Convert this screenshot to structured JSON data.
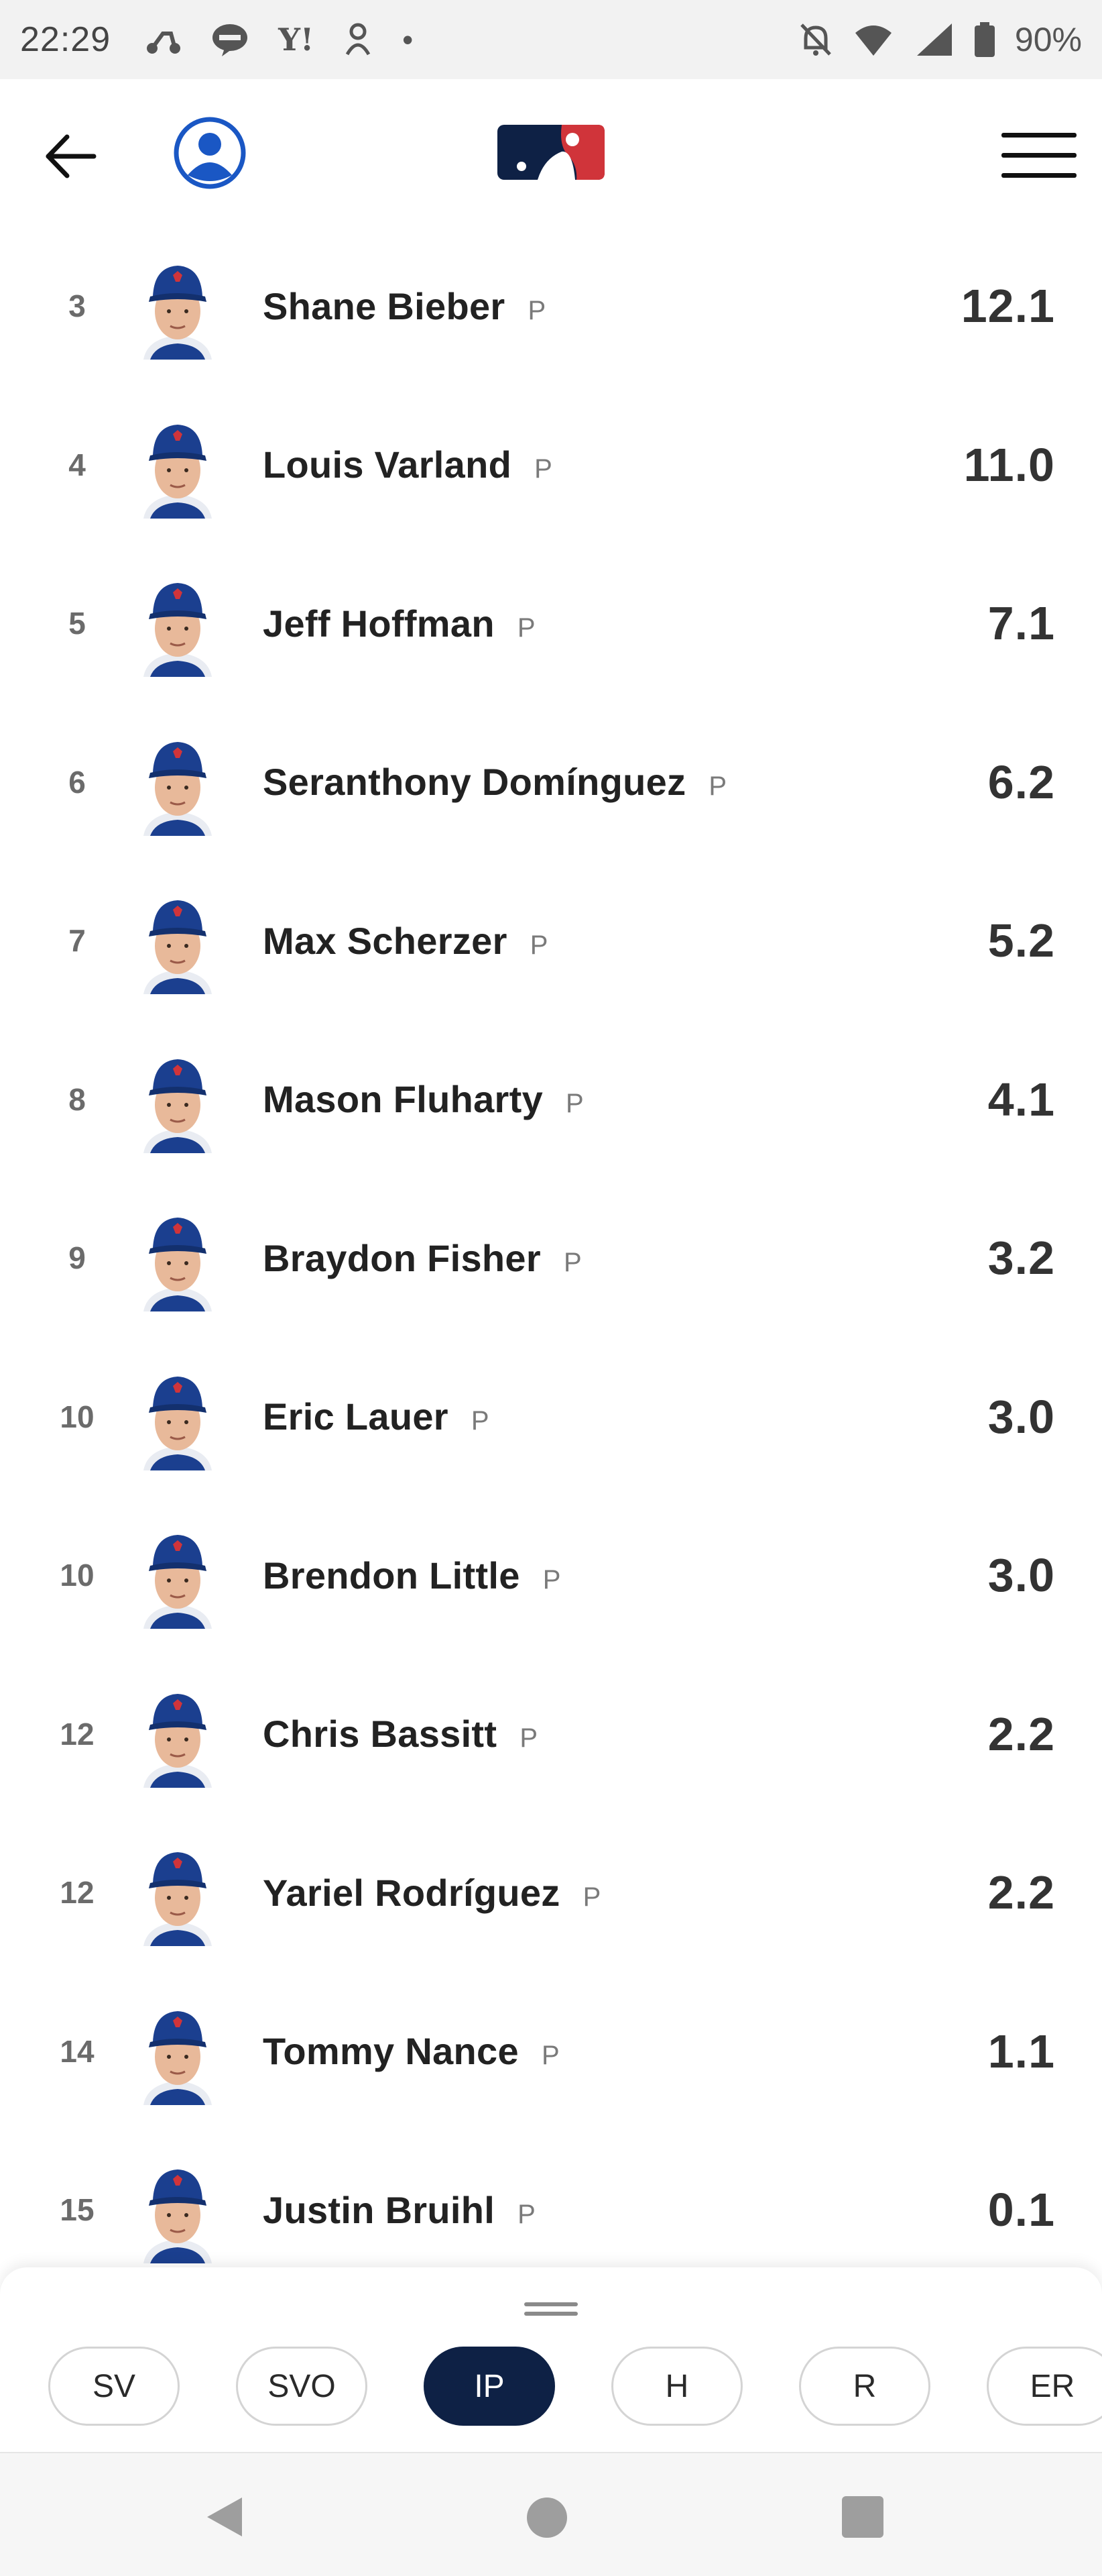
{
  "status_bar": {
    "time": "22:29",
    "battery": "90%",
    "icons": [
      "scooter-icon",
      "line-app-icon",
      "yahoo-icon",
      "baby-icon",
      "dot-icon",
      "mute-icon",
      "wifi-icon",
      "signal-icon",
      "battery-icon"
    ],
    "left_icon_glyphs": {
      "yahoo": "Y!",
      "dot": "•"
    }
  },
  "header": {
    "icons": [
      "back-arrow-icon",
      "user-avatar-icon",
      "mlb-logo",
      "hamburger-menu-icon"
    ],
    "colors": {
      "avatar_blue": "#1a57c4",
      "logo_blue": "#0e2145",
      "logo_red": "#d0343a"
    }
  },
  "players": [
    {
      "rank": "3",
      "name": "Shane Bieber",
      "pos": "P",
      "value": "12.1"
    },
    {
      "rank": "4",
      "name": "Louis Varland",
      "pos": "P",
      "value": "11.0"
    },
    {
      "rank": "5",
      "name": "Jeff Hoffman",
      "pos": "P",
      "value": "7.1"
    },
    {
      "rank": "6",
      "name": "Seranthony Domínguez",
      "pos": "P",
      "value": "6.2"
    },
    {
      "rank": "7",
      "name": "Max Scherzer",
      "pos": "P",
      "value": "5.2"
    },
    {
      "rank": "8",
      "name": "Mason Fluharty",
      "pos": "P",
      "value": "4.1"
    },
    {
      "rank": "9",
      "name": "Braydon Fisher",
      "pos": "P",
      "value": "3.2"
    },
    {
      "rank": "10",
      "name": "Eric Lauer",
      "pos": "P",
      "value": "3.0"
    },
    {
      "rank": "10",
      "name": "Brendon Little",
      "pos": "P",
      "value": "3.0"
    },
    {
      "rank": "12",
      "name": "Chris Bassitt",
      "pos": "P",
      "value": "2.2"
    },
    {
      "rank": "12",
      "name": "Yariel Rodríguez",
      "pos": "P",
      "value": "2.2"
    },
    {
      "rank": "14",
      "name": "Tommy Nance",
      "pos": "P",
      "value": "1.1"
    },
    {
      "rank": "15",
      "name": "Justin Bruihl",
      "pos": "P",
      "value": "0.1"
    }
  ],
  "stat_tabs": [
    {
      "label": "SV",
      "active": false
    },
    {
      "label": "SVO",
      "active": false
    },
    {
      "label": "IP",
      "active": true
    },
    {
      "label": "H",
      "active": false
    },
    {
      "label": "R",
      "active": false
    },
    {
      "label": "ER",
      "active": false
    }
  ],
  "colors": {
    "active_chip": "#0e2145",
    "cap_blue": "#1b3f8f"
  }
}
